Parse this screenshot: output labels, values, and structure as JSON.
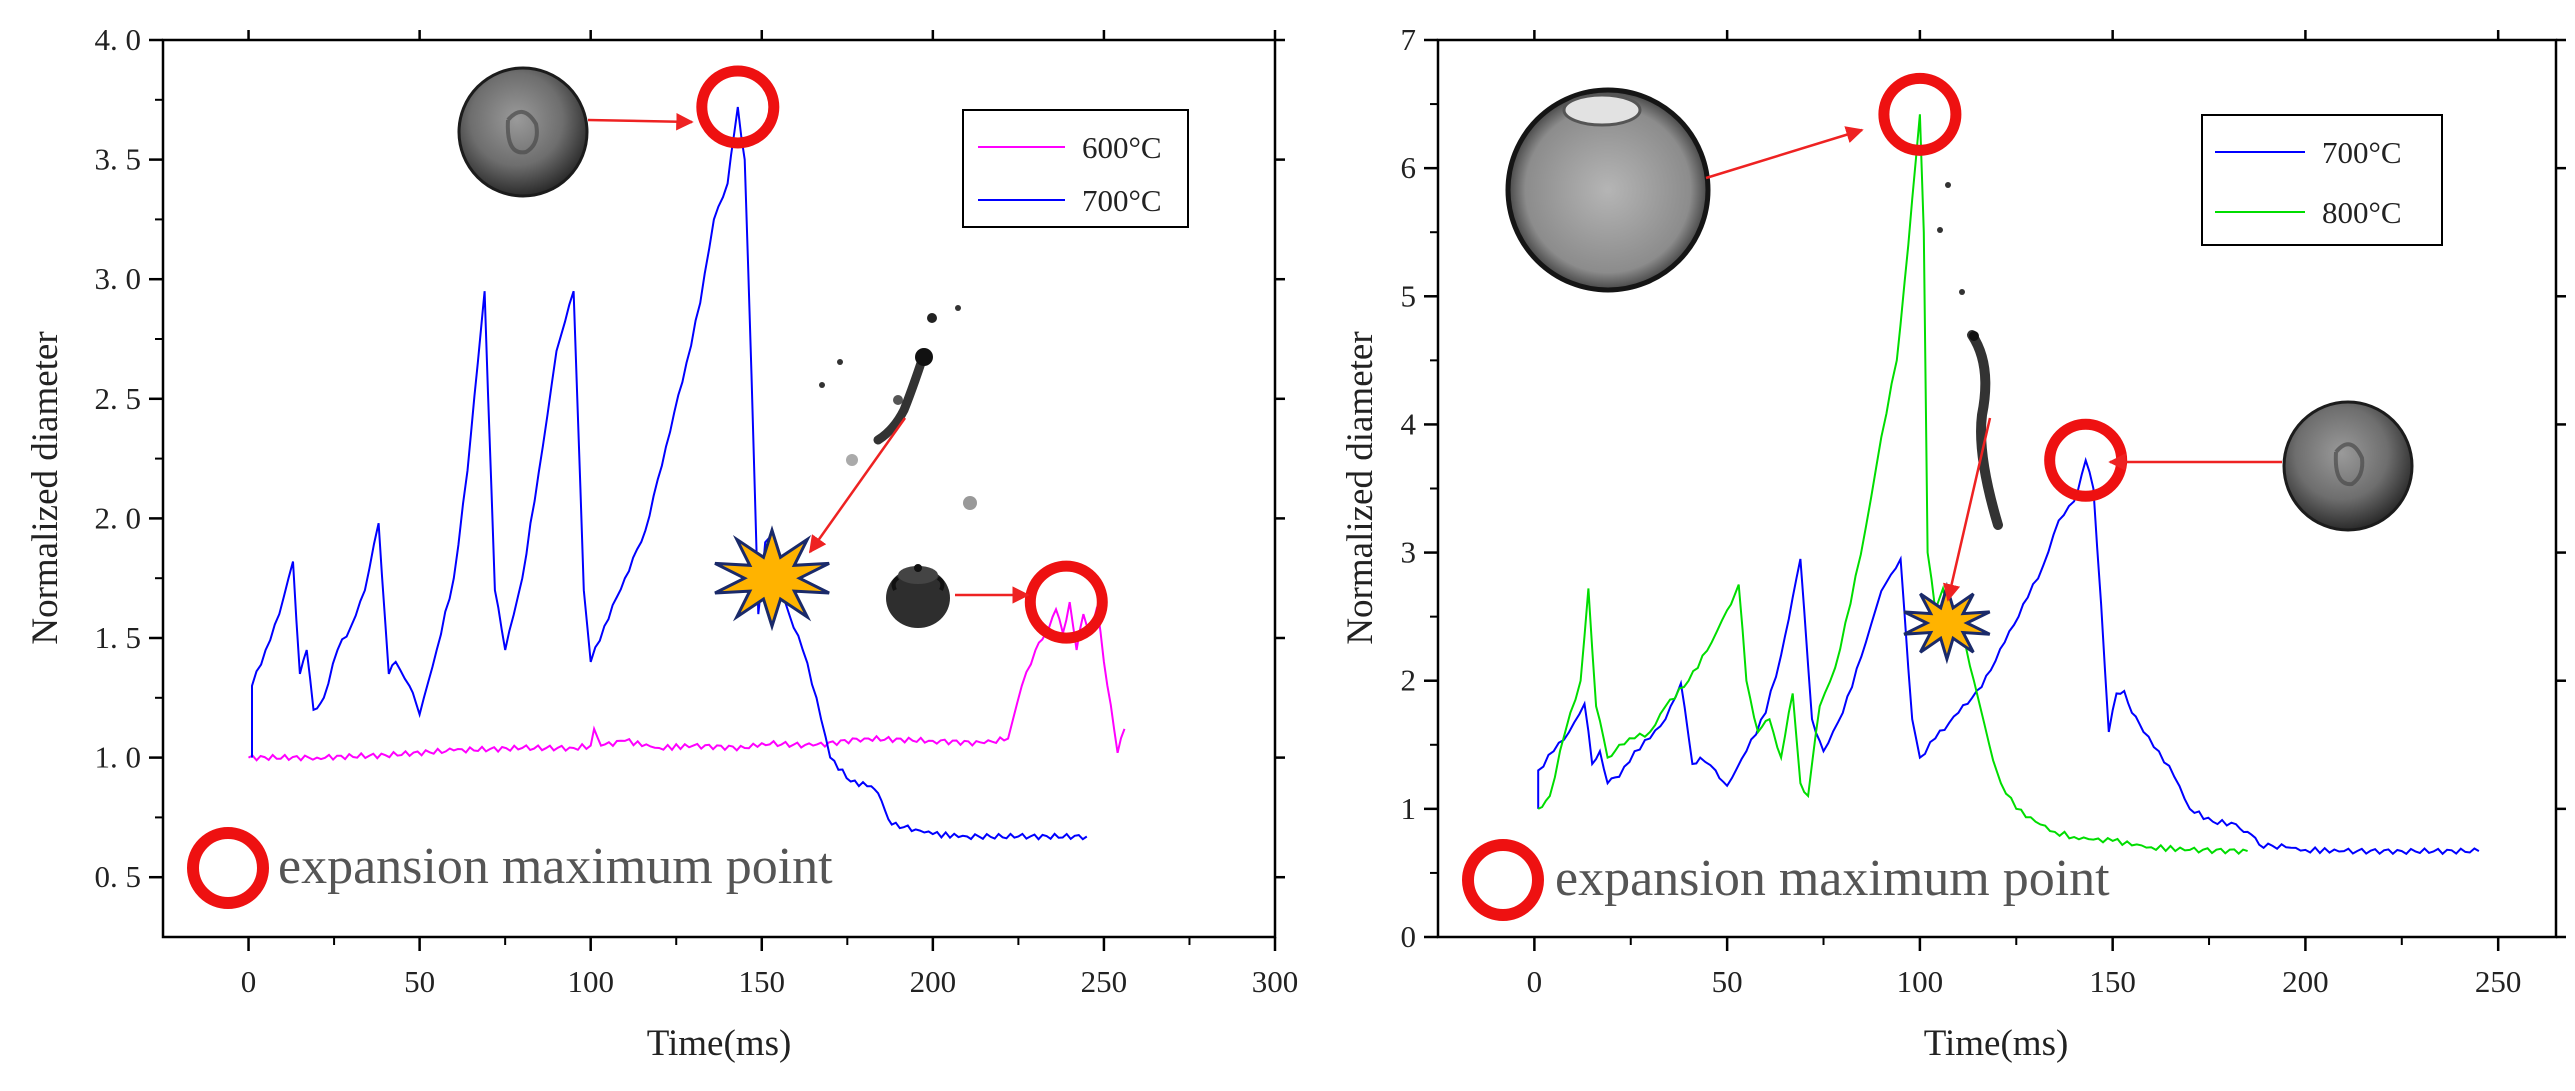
{
  "chart_data": [
    {
      "type": "line",
      "panel": "left",
      "xlabel": "Time(ms)",
      "ylabel": "Normalized diameter",
      "xlim": [
        -25,
        300
      ],
      "ylim": [
        0.25,
        4.0
      ],
      "xticks": [
        0,
        50,
        100,
        150,
        200,
        250,
        300
      ],
      "xtick_labels": [
        "0",
        "50",
        "100",
        "150",
        "200",
        "250",
        "300"
      ],
      "yticks": [
        0.5,
        1.0,
        1.5,
        2.0,
        2.5,
        3.0,
        3.5,
        4.0
      ],
      "ytick_labels": [
        "0. 5",
        "1. 0",
        "1. 5",
        "2. 0",
        "2. 5",
        "3. 0",
        "3. 5",
        "4. 0"
      ],
      "legend_position": "top-right",
      "series": [
        {
          "name": "600°C",
          "color": "#ff00ff",
          "points": [
            [
              0,
              1.0
            ],
            [
              20,
              1.0
            ],
            [
              40,
              1.01
            ],
            [
              60,
              1.03
            ],
            [
              80,
              1.04
            ],
            [
              95,
              1.04
            ],
            [
              100,
              1.05
            ],
            [
              101,
              1.12
            ],
            [
              103,
              1.05
            ],
            [
              110,
              1.07
            ],
            [
              120,
              1.04
            ],
            [
              130,
              1.05
            ],
            [
              145,
              1.04
            ],
            [
              150,
              1.06
            ],
            [
              165,
              1.05
            ],
            [
              180,
              1.08
            ],
            [
              200,
              1.07
            ],
            [
              215,
              1.06
            ],
            [
              222,
              1.08
            ],
            [
              226,
              1.3
            ],
            [
              230,
              1.45
            ],
            [
              233,
              1.52
            ],
            [
              236,
              1.62
            ],
            [
              238,
              1.52
            ],
            [
              240,
              1.65
            ],
            [
              242,
              1.45
            ],
            [
              244,
              1.6
            ],
            [
              246,
              1.52
            ],
            [
              248,
              1.63
            ],
            [
              250,
              1.4
            ],
            [
              252,
              1.22
            ],
            [
              254,
              1.02
            ],
            [
              256,
              1.12
            ]
          ]
        },
        {
          "name": "700°C",
          "color": "#0000ff",
          "points": [
            [
              1,
              1.0
            ],
            [
              1,
              1.3
            ],
            [
              5,
              1.45
            ],
            [
              9,
              1.6
            ],
            [
              13,
              1.82
            ],
            [
              15,
              1.35
            ],
            [
              17,
              1.45
            ],
            [
              19,
              1.2
            ],
            [
              22,
              1.25
            ],
            [
              26,
              1.45
            ],
            [
              30,
              1.55
            ],
            [
              34,
              1.7
            ],
            [
              38,
              1.98
            ],
            [
              41,
              1.35
            ],
            [
              43,
              1.4
            ],
            [
              47,
              1.3
            ],
            [
              50,
              1.18
            ],
            [
              55,
              1.45
            ],
            [
              60,
              1.75
            ],
            [
              64,
              2.2
            ],
            [
              67,
              2.65
            ],
            [
              69,
              2.95
            ],
            [
              72,
              1.7
            ],
            [
              75,
              1.45
            ],
            [
              80,
              1.75
            ],
            [
              86,
              2.3
            ],
            [
              90,
              2.7
            ],
            [
              95,
              2.95
            ],
            [
              98,
              1.7
            ],
            [
              100,
              1.4
            ],
            [
              104,
              1.55
            ],
            [
              110,
              1.75
            ],
            [
              116,
              1.95
            ],
            [
              122,
              2.3
            ],
            [
              128,
              2.65
            ],
            [
              132,
              2.9
            ],
            [
              136,
              3.25
            ],
            [
              140,
              3.4
            ],
            [
              143,
              3.72
            ],
            [
              145,
              3.5
            ],
            [
              147,
              2.6
            ],
            [
              149,
              1.6
            ],
            [
              151,
              1.9
            ],
            [
              153,
              1.92
            ],
            [
              155,
              1.75
            ],
            [
              158,
              1.6
            ],
            [
              162,
              1.45
            ],
            [
              166,
              1.25
            ],
            [
              170,
              1.0
            ],
            [
              176,
              0.9
            ],
            [
              182,
              0.88
            ],
            [
              185,
              0.82
            ],
            [
              188,
              0.72
            ],
            [
              195,
              0.7
            ],
            [
              200,
              0.68
            ],
            [
              210,
              0.67
            ],
            [
              225,
              0.67
            ],
            [
              245,
              0.67
            ]
          ]
        }
      ],
      "annotations": {
        "legend_note": "expansion maximum point",
        "markers": [
          {
            "kind": "circle",
            "x": 143,
            "y": 3.72
          },
          {
            "kind": "circle",
            "x": 239,
            "y": 1.65
          },
          {
            "kind": "burst",
            "x": 153,
            "y": 1.75
          }
        ]
      }
    },
    {
      "type": "line",
      "panel": "right",
      "xlabel": "Time(ms)",
      "ylabel": "Normalized diameter",
      "xlim": [
        -25,
        265
      ],
      "ylim": [
        0,
        7
      ],
      "xticks": [
        0,
        50,
        100,
        150,
        200,
        250
      ],
      "xtick_labels": [
        "0",
        "50",
        "100",
        "150",
        "200",
        "250"
      ],
      "yticks": [
        0,
        1,
        2,
        3,
        4,
        5,
        6,
        7
      ],
      "ytick_labels": [
        "0",
        "1",
        "2",
        "3",
        "4",
        "5",
        "6",
        "7"
      ],
      "legend_position": "top-right",
      "series": [
        {
          "name": "700°C",
          "color": "#0000ff",
          "points": [
            [
              1,
              1.0
            ],
            [
              1,
              1.3
            ],
            [
              5,
              1.45
            ],
            [
              9,
              1.6
            ],
            [
              13,
              1.82
            ],
            [
              15,
              1.35
            ],
            [
              17,
              1.45
            ],
            [
              19,
              1.2
            ],
            [
              22,
              1.25
            ],
            [
              26,
              1.45
            ],
            [
              30,
              1.55
            ],
            [
              34,
              1.7
            ],
            [
              38,
              1.98
            ],
            [
              41,
              1.35
            ],
            [
              43,
              1.4
            ],
            [
              47,
              1.3
            ],
            [
              50,
              1.18
            ],
            [
              55,
              1.45
            ],
            [
              60,
              1.75
            ],
            [
              64,
              2.2
            ],
            [
              67,
              2.65
            ],
            [
              69,
              2.95
            ],
            [
              72,
              1.7
            ],
            [
              75,
              1.45
            ],
            [
              80,
              1.75
            ],
            [
              86,
              2.3
            ],
            [
              90,
              2.7
            ],
            [
              95,
              2.95
            ],
            [
              98,
              1.7
            ],
            [
              100,
              1.4
            ],
            [
              104,
              1.55
            ],
            [
              110,
              1.75
            ],
            [
              116,
              1.95
            ],
            [
              122,
              2.3
            ],
            [
              128,
              2.65
            ],
            [
              132,
              2.9
            ],
            [
              136,
              3.25
            ],
            [
              140,
              3.4
            ],
            [
              143,
              3.72
            ],
            [
              145,
              3.5
            ],
            [
              147,
              2.6
            ],
            [
              149,
              1.6
            ],
            [
              151,
              1.9
            ],
            [
              153,
              1.92
            ],
            [
              155,
              1.75
            ],
            [
              158,
              1.6
            ],
            [
              162,
              1.45
            ],
            [
              166,
              1.25
            ],
            [
              170,
              1.0
            ],
            [
              176,
              0.9
            ],
            [
              182,
              0.88
            ],
            [
              185,
              0.82
            ],
            [
              188,
              0.72
            ],
            [
              195,
              0.7
            ],
            [
              200,
              0.68
            ],
            [
              210,
              0.67
            ],
            [
              225,
              0.67
            ],
            [
              245,
              0.67
            ]
          ]
        },
        {
          "name": "800°C",
          "color": "#00dd00",
          "points": [
            [
              1,
              1.0
            ],
            [
              4,
              1.1
            ],
            [
              8,
              1.6
            ],
            [
              12,
              2.0
            ],
            [
              14,
              2.72
            ],
            [
              16,
              1.8
            ],
            [
              19,
              1.4
            ],
            [
              22,
              1.5
            ],
            [
              26,
              1.55
            ],
            [
              30,
              1.6
            ],
            [
              34,
              1.8
            ],
            [
              40,
              2.0
            ],
            [
              46,
              2.3
            ],
            [
              50,
              2.55
            ],
            [
              53,
              2.75
            ],
            [
              55,
              2.0
            ],
            [
              58,
              1.6
            ],
            [
              61,
              1.7
            ],
            [
              64,
              1.4
            ],
            [
              67,
              1.9
            ],
            [
              69,
              1.2
            ],
            [
              71,
              1.1
            ],
            [
              74,
              1.8
            ],
            [
              78,
              2.1
            ],
            [
              82,
              2.6
            ],
            [
              86,
              3.2
            ],
            [
              90,
              3.9
            ],
            [
              94,
              4.5
            ],
            [
              97,
              5.4
            ],
            [
              100,
              6.42
            ],
            [
              101,
              5.5
            ],
            [
              102,
              3.0
            ],
            [
              104,
              2.55
            ],
            [
              106,
              2.72
            ],
            [
              108,
              2.5
            ],
            [
              111,
              2.4
            ],
            [
              114,
              2.0
            ],
            [
              118,
              1.5
            ],
            [
              121,
              1.2
            ],
            [
              125,
              1.0
            ],
            [
              130,
              0.9
            ],
            [
              135,
              0.82
            ],
            [
              140,
              0.78
            ],
            [
              145,
              0.76
            ],
            [
              150,
              0.75
            ],
            [
              160,
              0.7
            ],
            [
              170,
              0.68
            ],
            [
              185,
              0.67
            ]
          ]
        }
      ],
      "annotations": {
        "legend_note": "expansion maximum point",
        "markers": [
          {
            "kind": "circle",
            "x": 100,
            "y": 6.42
          },
          {
            "kind": "circle",
            "x": 143,
            "y": 3.72
          },
          {
            "kind": "burst",
            "x": 107,
            "y": 2.45
          }
        ]
      }
    }
  ],
  "colors": {
    "marker_ring": "#ee1111",
    "arrow": "#ee2222",
    "burst_fill": "#ffb300",
    "burst_stroke": "#1a2a6a"
  }
}
